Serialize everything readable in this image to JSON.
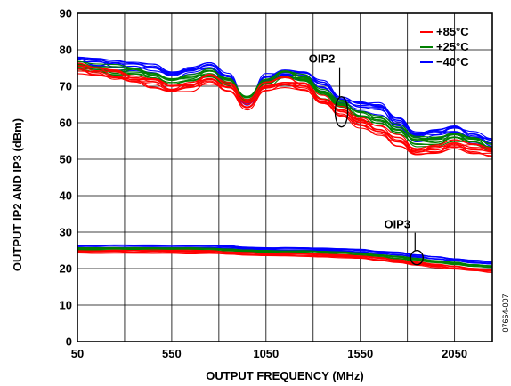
{
  "figure_id": "07664-007",
  "chart_data": {
    "type": "line",
    "title": "",
    "xlabel": "OUTPUT FREQUENCY (MHz)",
    "ylabel": "OUTPUT IP2 AND IP3 (dBm)",
    "xlim": [
      50,
      2250
    ],
    "ylim": [
      0,
      90
    ],
    "xticks": [
      50,
      550,
      1050,
      1550,
      2050
    ],
    "yticks": [
      0,
      10,
      20,
      30,
      40,
      50,
      60,
      70,
      80,
      90
    ],
    "grid": true,
    "legend_position": "top-right",
    "x": [
      50,
      150,
      250,
      350,
      450,
      550,
      650,
      750,
      850,
      950,
      1050,
      1150,
      1250,
      1350,
      1450,
      1550,
      1650,
      1750,
      1850,
      1950,
      2050,
      2150,
      2250
    ],
    "series": [
      {
        "name": "+85°C",
        "color": "#ff0000",
        "oip2": [
          75,
          74,
          73,
          72,
          71,
          69,
          70,
          72,
          70,
          65,
          70,
          71,
          70,
          66,
          63,
          60,
          58,
          55,
          52,
          53,
          54,
          53,
          52
        ],
        "oip3": [
          24.5,
          24.5,
          24.5,
          24.5,
          24.5,
          24.5,
          24.5,
          24.5,
          24.2,
          24,
          23.8,
          23.8,
          23.8,
          23.5,
          23.3,
          23,
          22.5,
          22,
          21.3,
          20.7,
          20.2,
          19.7,
          19.3
        ]
      },
      {
        "name": "+25°C",
        "color": "#008000",
        "oip2": [
          75.5,
          75,
          74.5,
          74,
          73,
          71,
          72,
          73.5,
          71,
          66,
          71,
          73,
          72,
          68,
          65,
          62,
          61,
          58,
          55,
          55,
          56,
          55,
          53
        ],
        "oip3": [
          25.3,
          25.3,
          25.3,
          25.3,
          25.3,
          25.3,
          25.3,
          25.3,
          25,
          24.8,
          24.6,
          24.6,
          24.6,
          24.4,
          24.2,
          24,
          23.5,
          23,
          22.4,
          21.8,
          21.3,
          20.8,
          20.5
        ]
      },
      {
        "name": "−40°C",
        "color": "#0000ff",
        "oip2": [
          76.5,
          76,
          75.5,
          75,
          74.5,
          73,
          74,
          75,
          72,
          65,
          72,
          73,
          73,
          70,
          66,
          64,
          64,
          60,
          56,
          57,
          58,
          56,
          54
        ],
        "oip3": [
          26,
          26,
          26,
          26,
          26,
          26,
          26,
          26,
          25.8,
          25.5,
          25.3,
          25.3,
          25.3,
          25.2,
          25,
          24.8,
          24.4,
          24,
          23.4,
          22.8,
          22.3,
          21.8,
          21.5
        ]
      }
    ],
    "annotations": [
      {
        "text": "OIP2",
        "x": 1450,
        "y": 63
      },
      {
        "text": "OIP3",
        "x": 1850,
        "y": 23
      }
    ]
  }
}
